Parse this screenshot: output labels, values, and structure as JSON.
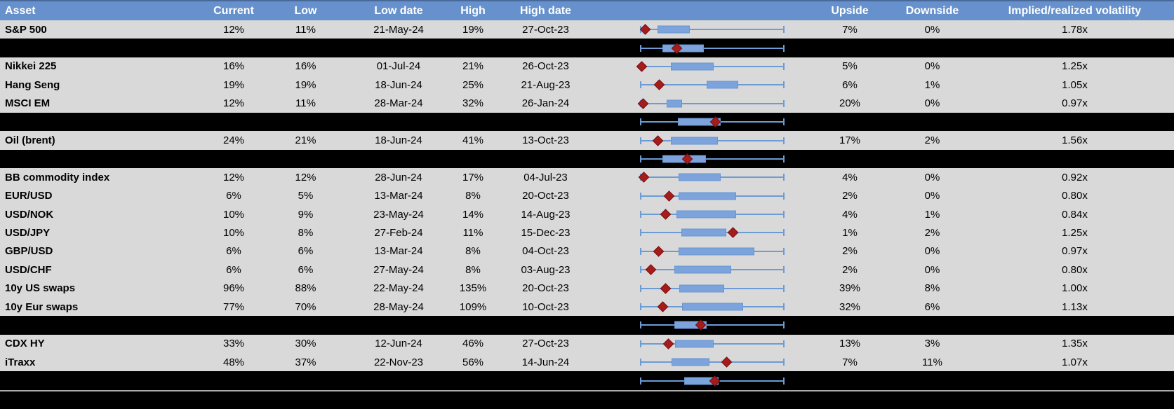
{
  "colors": {
    "header_bg": "#6791CC",
    "header_top_border": "#49699B",
    "header_text": "#FFFFFF",
    "row_bg": "#D9D9D9",
    "separator_bg": "#000000",
    "whisker": "#6C9BD6",
    "box_fill": "#7CA3DB",
    "box_border": "#6795D2",
    "diamond_fill": "#A41C1C",
    "diamond_border": "#7A1010",
    "divider_line": "#ABABAB"
  },
  "chart_data": {
    "type": "table",
    "description_of_embedded_plots": "Each row embeds a horizontal box-whisker strip (normalized low-to-high volatility range) with a dark-red diamond marking the current level; black aggregate rows show a box plot only.",
    "legend_position": "none",
    "grid": false,
    "x_range_frac": [
      0,
      1
    ],
    "columns": [
      "Asset",
      "Current",
      "Low",
      "Low date",
      "High",
      "High date",
      "",
      "Upside",
      "Downside",
      "Implied/realized volatility"
    ],
    "rows": [
      {
        "row_type": "asset",
        "asset": "S&P 500",
        "current": "12%",
        "low": "11%",
        "low_date": "21-May-24",
        "high": "19%",
        "high_date": "27-Oct-23",
        "upside": "7%",
        "downside": "0%",
        "implied_realized": "1.78x",
        "plot": {
          "whisker_low": 0.0,
          "box_low": 0.12,
          "box_high": 0.345,
          "whisker_high": 1.0,
          "marker": 0.03
        }
      },
      {
        "row_type": "aggregate",
        "plot": {
          "whisker_low": 0.0,
          "box_low": 0.15,
          "box_high": 0.44,
          "whisker_high": 1.0,
          "marker": 0.25
        }
      },
      {
        "row_type": "asset",
        "asset": "Nikkei 225",
        "current": "16%",
        "low": "16%",
        "low_date": "01-Jul-24",
        "high": "21%",
        "high_date": "26-Oct-23",
        "upside": "5%",
        "downside": "0%",
        "implied_realized": "1.25x",
        "plot": {
          "whisker_low": 0.0,
          "box_low": 0.21,
          "box_high": 0.51,
          "whisker_high": 1.0,
          "marker": 0.005
        }
      },
      {
        "row_type": "asset",
        "asset": "Hang Seng",
        "current": "19%",
        "low": "19%",
        "low_date": "18-Jun-24",
        "high": "25%",
        "high_date": "21-Aug-23",
        "upside": "6%",
        "downside": "1%",
        "implied_realized": "1.05x",
        "plot": {
          "whisker_low": 0.0,
          "box_low": 0.46,
          "box_high": 0.68,
          "whisker_high": 1.0,
          "marker": 0.13
        }
      },
      {
        "row_type": "asset",
        "asset": "MSCI EM",
        "current": "12%",
        "low": "11%",
        "low_date": "28-Mar-24",
        "high": "32%",
        "high_date": "26-Jan-24",
        "upside": "20%",
        "downside": "0%",
        "implied_realized": "0.97x",
        "plot": {
          "whisker_low": 0.0,
          "box_low": 0.18,
          "box_high": 0.29,
          "whisker_high": 1.0,
          "marker": 0.015
        }
      },
      {
        "row_type": "aggregate",
        "plot": {
          "whisker_low": 0.0,
          "box_low": 0.26,
          "box_high": 0.56,
          "whisker_high": 1.0,
          "marker": 0.52
        }
      },
      {
        "row_type": "asset",
        "asset": "Oil (brent)",
        "current": "24%",
        "low": "21%",
        "low_date": "18-Jun-24",
        "high": "41%",
        "high_date": "13-Oct-23",
        "upside": "17%",
        "downside": "2%",
        "implied_realized": "1.56x",
        "plot": {
          "whisker_low": 0.0,
          "box_low": 0.21,
          "box_high": 0.54,
          "whisker_high": 1.0,
          "marker": 0.12
        }
      },
      {
        "row_type": "aggregate",
        "plot": {
          "whisker_low": 0.0,
          "box_low": 0.15,
          "box_high": 0.455,
          "whisker_high": 1.0,
          "marker": 0.325
        }
      },
      {
        "row_type": "asset",
        "asset": "BB commodity index",
        "current": "12%",
        "low": "12%",
        "low_date": "28-Jun-24",
        "high": "17%",
        "high_date": "04-Jul-23",
        "upside": "4%",
        "downside": "0%",
        "implied_realized": "0.92x",
        "plot": {
          "whisker_low": 0.0,
          "box_low": 0.265,
          "box_high": 0.56,
          "whisker_high": 1.0,
          "marker": 0.02
        }
      },
      {
        "row_type": "asset",
        "asset": "EUR/USD",
        "current": "6%",
        "low": "5%",
        "low_date": "13-Mar-24",
        "high": "8%",
        "high_date": "20-Oct-23",
        "upside": "2%",
        "downside": "0%",
        "implied_realized": "0.80x",
        "plot": {
          "whisker_low": 0.0,
          "box_low": 0.265,
          "box_high": 0.665,
          "whisker_high": 1.0,
          "marker": 0.2
        }
      },
      {
        "row_type": "asset",
        "asset": "USD/NOK",
        "current": "10%",
        "low": "9%",
        "low_date": "23-May-24",
        "high": "14%",
        "high_date": "14-Aug-23",
        "upside": "4%",
        "downside": "1%",
        "implied_realized": "0.84x",
        "plot": {
          "whisker_low": 0.0,
          "box_low": 0.25,
          "box_high": 0.665,
          "whisker_high": 1.0,
          "marker": 0.175
        }
      },
      {
        "row_type": "asset",
        "asset": "USD/JPY",
        "current": "10%",
        "low": "8%",
        "low_date": "27-Feb-24",
        "high": "11%",
        "high_date": "15-Dec-23",
        "upside": "1%",
        "downside": "2%",
        "implied_realized": "1.25x",
        "plot": {
          "whisker_low": 0.0,
          "box_low": 0.285,
          "box_high": 0.6,
          "whisker_high": 1.0,
          "marker": 0.645
        }
      },
      {
        "row_type": "asset",
        "asset": "GBP/USD",
        "current": "6%",
        "low": "6%",
        "low_date": "13-Mar-24",
        "high": "8%",
        "high_date": "04-Oct-23",
        "upside": "2%",
        "downside": "0%",
        "implied_realized": "0.97x",
        "plot": {
          "whisker_low": 0.0,
          "box_low": 0.265,
          "box_high": 0.795,
          "whisker_high": 1.0,
          "marker": 0.125
        }
      },
      {
        "row_type": "asset",
        "asset": "USD/CHF",
        "current": "6%",
        "low": "6%",
        "low_date": "27-May-24",
        "high": "8%",
        "high_date": "03-Aug-23",
        "upside": "2%",
        "downside": "0%",
        "implied_realized": "0.80x",
        "plot": {
          "whisker_low": 0.0,
          "box_low": 0.235,
          "box_high": 0.63,
          "whisker_high": 1.0,
          "marker": 0.07
        }
      },
      {
        "row_type": "asset",
        "asset": "10y US swaps",
        "current": "96%",
        "low": "88%",
        "low_date": "22-May-24",
        "high": "135%",
        "high_date": "20-Oct-23",
        "upside": "39%",
        "downside": "8%",
        "implied_realized": "1.00x",
        "plot": {
          "whisker_low": 0.0,
          "box_low": 0.27,
          "box_high": 0.585,
          "whisker_high": 1.0,
          "marker": 0.175
        }
      },
      {
        "row_type": "asset",
        "asset": "10y Eur swaps",
        "current": "77%",
        "low": "70%",
        "low_date": "28-May-24",
        "high": "109%",
        "high_date": "10-Oct-23",
        "upside": "32%",
        "downside": "6%",
        "implied_realized": "1.13x",
        "plot": {
          "whisker_low": 0.0,
          "box_low": 0.29,
          "box_high": 0.715,
          "whisker_high": 1.0,
          "marker": 0.155
        }
      },
      {
        "row_type": "aggregate",
        "plot": {
          "whisker_low": 0.0,
          "box_low": 0.235,
          "box_high": 0.46,
          "whisker_high": 1.0,
          "marker": 0.42
        }
      },
      {
        "row_type": "asset",
        "asset": "CDX HY",
        "current": "33%",
        "low": "30%",
        "low_date": "12-Jun-24",
        "high": "46%",
        "high_date": "27-Oct-23",
        "upside": "13%",
        "downside": "3%",
        "implied_realized": "1.35x",
        "plot": {
          "whisker_low": 0.0,
          "box_low": 0.24,
          "box_high": 0.51,
          "whisker_high": 1.0,
          "marker": 0.195
        }
      },
      {
        "row_type": "asset",
        "asset": "iTraxx",
        "current": "48%",
        "low": "37%",
        "low_date": "22-Nov-23",
        "high": "56%",
        "high_date": "14-Jun-24",
        "upside": "7%",
        "downside": "11%",
        "implied_realized": "1.07x",
        "plot": {
          "whisker_low": 0.0,
          "box_low": 0.215,
          "box_high": 0.48,
          "whisker_high": 1.0,
          "marker": 0.6
        }
      },
      {
        "row_type": "aggregate",
        "plot": {
          "whisker_low": 0.0,
          "box_low": 0.305,
          "box_high": 0.545,
          "whisker_high": 1.0,
          "marker": 0.515
        }
      }
    ]
  }
}
